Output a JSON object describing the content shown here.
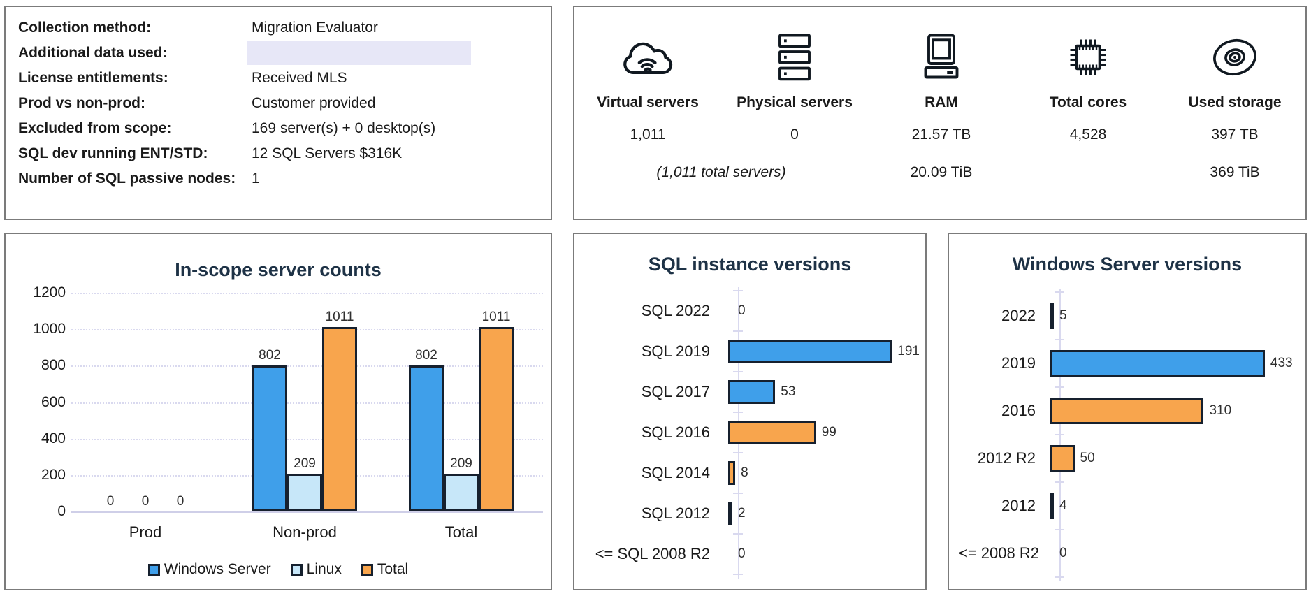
{
  "colors": {
    "bar_blue": "#3f9fea",
    "bar_light_blue": "#c7e7f9",
    "bar_orange": "#f8a54d",
    "bar_border_dark": "#16202e",
    "title_navy": "#1e3246",
    "grid_lavender": "#d9d9ef",
    "highlight_lavender": "#e7e7f7",
    "panel_border_gray": "#7b7b7b",
    "text_black": "#1a1a1a"
  },
  "info_panel": {
    "rows": [
      {
        "label": "Collection method:",
        "value": "Migration Evaluator",
        "highlighted": false
      },
      {
        "label": "Additional data used:",
        "value": "",
        "highlighted": true
      },
      {
        "label": "License entitlements:",
        "value": "Received MLS",
        "highlighted": false
      },
      {
        "label": "Prod vs non-prod:",
        "value": "Customer provided",
        "highlighted": false
      },
      {
        "label": "Excluded from scope:",
        "value": "169 server(s) + 0 desktop(s)",
        "highlighted": false
      },
      {
        "label": "SQL dev running ENT/STD:",
        "value": "12 SQL Servers $316K",
        "highlighted": false
      },
      {
        "label": "Number of SQL passive nodes:",
        "value": "1",
        "highlighted": false
      }
    ]
  },
  "summary_panel": {
    "columns": [
      {
        "icon": "cloud-icon",
        "label": "Virtual servers",
        "value": "1,011"
      },
      {
        "icon": "server-stack-icon",
        "label": "Physical servers",
        "value": "0"
      },
      {
        "icon": "computer-icon",
        "label": "RAM",
        "value": "21.57 TB"
      },
      {
        "icon": "cpu-chip-icon",
        "label": "Total cores",
        "value": "4,528"
      },
      {
        "icon": "storage-disk-icon",
        "label": "Used storage",
        "value": "397 TB"
      }
    ],
    "footnotes": {
      "servers_total": "(1,011 total servers)",
      "ram_tib": "20.09 TiB",
      "storage_tib": "369 TiB"
    }
  },
  "chart_data": [
    {
      "type": "bar",
      "title": "In-scope server counts",
      "categories": [
        "Prod",
        "Non-prod",
        "Total"
      ],
      "series": [
        {
          "name": "Windows Server",
          "color_key": "blue",
          "values": [
            0,
            802,
            802
          ]
        },
        {
          "name": "Linux",
          "color_key": "light_blue",
          "values": [
            0,
            209,
            209
          ]
        },
        {
          "name": "Total",
          "color_key": "orange",
          "values": [
            0,
            1011,
            1011
          ]
        }
      ],
      "ylim": [
        0,
        1200
      ],
      "yticks": [
        0,
        200,
        400,
        600,
        800,
        1000,
        1200
      ],
      "grid": true,
      "legend_position": "bottom"
    },
    {
      "type": "bar_horizontal",
      "title": "SQL instance versions",
      "categories": [
        "SQL 2022",
        "SQL 2019",
        "SQL 2017",
        "SQL 2016",
        "SQL 2014",
        "SQL 2012",
        "<= SQL 2008 R2"
      ],
      "values": [
        0,
        191,
        53,
        99,
        8,
        2,
        0
      ],
      "bar_colors": [
        "none",
        "blue",
        "blue",
        "orange",
        "orange",
        "dark",
        "none"
      ],
      "xlim": [
        0,
        200
      ],
      "grid": false,
      "legend_position": "none"
    },
    {
      "type": "bar_horizontal",
      "title": "Windows Server versions",
      "categories": [
        "2022",
        "2019",
        "2016",
        "2012 R2",
        "2012",
        "<= 2008 R2"
      ],
      "values": [
        5,
        433,
        310,
        50,
        4,
        0
      ],
      "bar_colors": [
        "blue",
        "blue",
        "orange",
        "orange",
        "dark",
        "none"
      ],
      "xlim": [
        0,
        450
      ],
      "grid": false,
      "legend_position": "none"
    }
  ]
}
